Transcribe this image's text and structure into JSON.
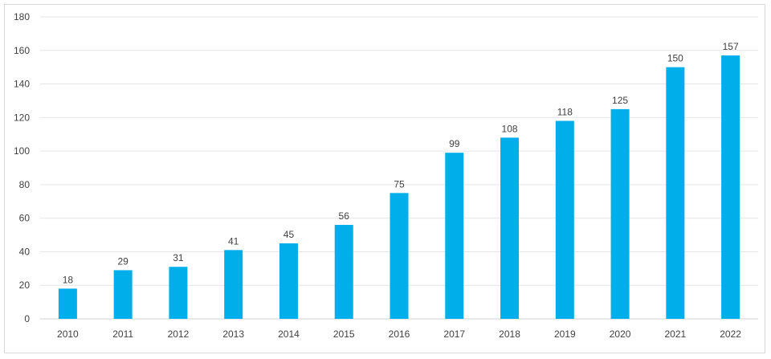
{
  "chart_data": {
    "type": "bar",
    "categories": [
      "2010",
      "2011",
      "2012",
      "2013",
      "2014",
      "2015",
      "2016",
      "2017",
      "2018",
      "2019",
      "2020",
      "2021",
      "2022"
    ],
    "values": [
      18,
      29,
      31,
      41,
      45,
      56,
      75,
      99,
      108,
      118,
      125,
      150,
      157
    ],
    "ylim": [
      0,
      180
    ],
    "yticks": [
      0,
      20,
      40,
      60,
      80,
      100,
      120,
      140,
      160,
      180
    ],
    "grid": true,
    "data_labels": true,
    "legend": false,
    "colors": {
      "bar": "#00aee9",
      "grid": "#e6e6e6",
      "text": "#404040"
    }
  }
}
